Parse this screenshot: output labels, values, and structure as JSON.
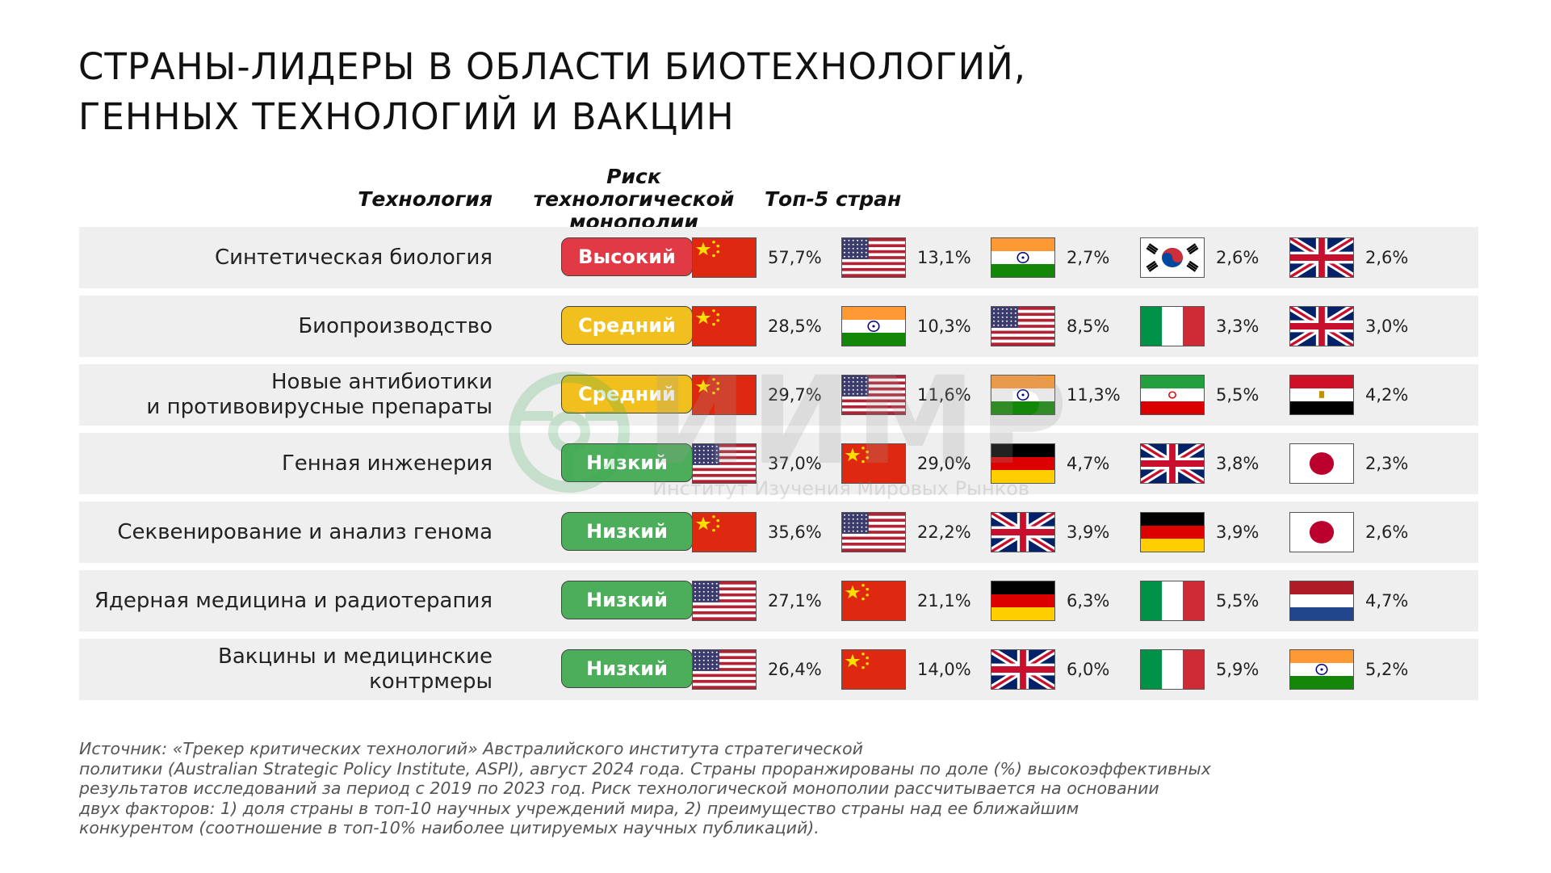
{
  "title": {
    "line1": "Страны-лидеры в области биотехнологий,",
    "line2": "генных технологий и вакцин"
  },
  "headers": {
    "technology": "Технология",
    "risk": "Риск технологической монополии",
    "top5": "Топ-5 стран"
  },
  "rows": [
    {
      "tech": "Синтетическая биология",
      "risk": "Высокий",
      "level": "high",
      "countries": [
        {
          "flag": "china-flag",
          "value": "57,7%"
        },
        {
          "flag": "usa-flag",
          "value": "13,1%"
        },
        {
          "flag": "india-flag",
          "value": "2,7%"
        },
        {
          "flag": "south-korea-flag",
          "value": "2,6%"
        },
        {
          "flag": "uk-flag",
          "value": "2,6%"
        }
      ]
    },
    {
      "tech": "Биопроизводство",
      "risk": "Средний",
      "level": "mid",
      "countries": [
        {
          "flag": "china-flag",
          "value": "28,5%"
        },
        {
          "flag": "india-flag",
          "value": "10,3%"
        },
        {
          "flag": "usa-flag",
          "value": "8,5%"
        },
        {
          "flag": "italy-flag",
          "value": "3,3%"
        },
        {
          "flag": "uk-flag",
          "value": "3,0%"
        }
      ]
    },
    {
      "tech": "Новые антибиотики\nи противовирусные препараты",
      "risk": "Средний",
      "level": "mid",
      "countries": [
        {
          "flag": "china-flag",
          "value": "29,7%"
        },
        {
          "flag": "usa-flag",
          "value": "11,6%"
        },
        {
          "flag": "india-flag",
          "value": "11,3%"
        },
        {
          "flag": "iran-flag",
          "value": "5,5%"
        },
        {
          "flag": "egypt-flag",
          "value": "4,2%"
        }
      ]
    },
    {
      "tech": "Генная инженерия",
      "risk": "Низкий",
      "level": "low",
      "countries": [
        {
          "flag": "usa-flag",
          "value": "37,0%"
        },
        {
          "flag": "china-flag",
          "value": "29,0%"
        },
        {
          "flag": "germany-flag",
          "value": "4,7%"
        },
        {
          "flag": "uk-flag",
          "value": "3,8%"
        },
        {
          "flag": "japan-flag",
          "value": "2,3%"
        }
      ]
    },
    {
      "tech": "Секвенирование и анализ генома",
      "risk": "Низкий",
      "level": "low",
      "countries": [
        {
          "flag": "china-flag",
          "value": "35,6%"
        },
        {
          "flag": "usa-flag",
          "value": "22,2%"
        },
        {
          "flag": "uk-flag",
          "value": "3,9%"
        },
        {
          "flag": "germany-flag",
          "value": "3,9%"
        },
        {
          "flag": "japan-flag",
          "value": "2,6%"
        }
      ]
    },
    {
      "tech": "Ядерная медицина и радиотерапия",
      "risk": "Низкий",
      "level": "low",
      "countries": [
        {
          "flag": "usa-flag",
          "value": "27,1%"
        },
        {
          "flag": "china-flag",
          "value": "21,1%"
        },
        {
          "flag": "germany-flag",
          "value": "6,3%"
        },
        {
          "flag": "italy-flag",
          "value": "5,5%"
        },
        {
          "flag": "netherlands-flag",
          "value": "4,7%"
        }
      ]
    },
    {
      "tech": "Вакцины и медицинские контрмеры",
      "risk": "Низкий",
      "level": "low",
      "countries": [
        {
          "flag": "usa-flag",
          "value": "26,4%"
        },
        {
          "flag": "china-flag",
          "value": "14,0%"
        },
        {
          "flag": "uk-flag",
          "value": "6,0%"
        },
        {
          "flag": "italy-flag",
          "value": "5,9%"
        },
        {
          "flag": "india-flag",
          "value": "5,2%"
        }
      ]
    }
  ],
  "watermark": {
    "name": "ИИМР",
    "subtitle": "Институт Изучения Мировых Рынков"
  },
  "footnote": {
    "line1": "Источник: «Трекер критических технологий» Австралийского института стратегической",
    "line2": "политики (Australian Strategic Policy Institute, ASPI), август 2024 года. Страны проранжированы по доле (%) высокоэффективных",
    "line3": "результатов исследований за период с 2019 по 2023 год. Риск технологической монополии рассчитывается на основании",
    "line4": "двух факторов: 1) доля страны в топ-10 научных учреждений мира, 2) преимущество страны над ее ближайшим",
    "line5": "конкурентом (соотношение в топ-10% наиболее цитируемых научных публикаций)."
  },
  "colors": {
    "risk_high": "#e23a44",
    "risk_mid": "#f2c01e",
    "risk_low": "#4cae5a",
    "row_bg": "#efefef"
  }
}
